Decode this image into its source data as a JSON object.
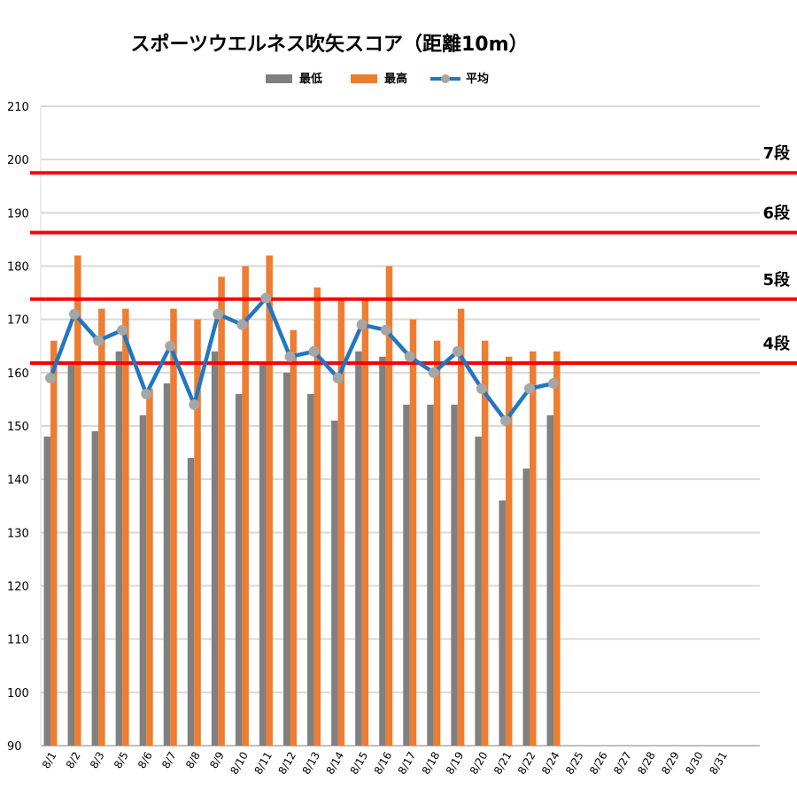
{
  "chart_data": {
    "type": "bar",
    "title": "スポーツウエルネス吹矢スコア（距離10m）",
    "categories": [
      "8/1",
      "8/2",
      "8/3",
      "8/5",
      "8/6",
      "8/7",
      "8/8",
      "8/9",
      "8/10",
      "8/11",
      "8/12",
      "8/13",
      "8/14",
      "8/15",
      "8/16",
      "8/17",
      "8/18",
      "8/19",
      "8/20",
      "8/21",
      "8/22",
      "8/24",
      "8/25",
      "8/26",
      "8/27",
      "8/28",
      "8/29",
      "8/30",
      "8/31"
    ],
    "ylim": [
      90,
      210
    ],
    "yticks": [
      90,
      100,
      110,
      120,
      130,
      140,
      150,
      160,
      170,
      180,
      190,
      200,
      210
    ],
    "grid": true,
    "legend_position": "top",
    "series": [
      {
        "name": "最低",
        "type": "bar",
        "color": "#808080",
        "values": [
          148,
          162,
          149,
          164,
          152,
          158,
          144,
          164,
          156,
          162,
          160,
          156,
          151,
          164,
          163,
          154,
          154,
          154,
          148,
          136,
          142,
          152,
          null,
          null,
          null,
          null,
          null,
          null,
          null
        ]
      },
      {
        "name": "最高",
        "type": "bar",
        "color": "#ED7D31",
        "values": [
          166,
          182,
          172,
          172,
          157,
          172,
          170,
          178,
          180,
          182,
          168,
          176,
          174,
          174,
          180,
          170,
          166,
          172,
          166,
          163,
          164,
          164,
          null,
          null,
          null,
          null,
          null,
          null,
          null
        ]
      },
      {
        "name": "平均",
        "type": "line",
        "color": "#1F77C4",
        "marker_color": "#A6A6A6",
        "values": [
          159,
          171,
          166,
          168,
          156,
          165,
          154,
          171,
          169,
          174,
          163,
          164,
          159,
          169,
          168,
          163,
          160,
          164,
          157,
          151,
          157,
          158,
          null,
          null,
          null,
          null,
          null,
          null,
          null
        ]
      }
    ],
    "reference_lines": [
      {
        "label": "7段",
        "value": 197.5,
        "color": "#FF0000"
      },
      {
        "label": "6段",
        "value": 186.3,
        "color": "#FF0000"
      },
      {
        "label": "5段",
        "value": 173.8,
        "color": "#FF0000"
      },
      {
        "label": "4段",
        "value": 161.8,
        "color": "#FF0000"
      }
    ]
  }
}
